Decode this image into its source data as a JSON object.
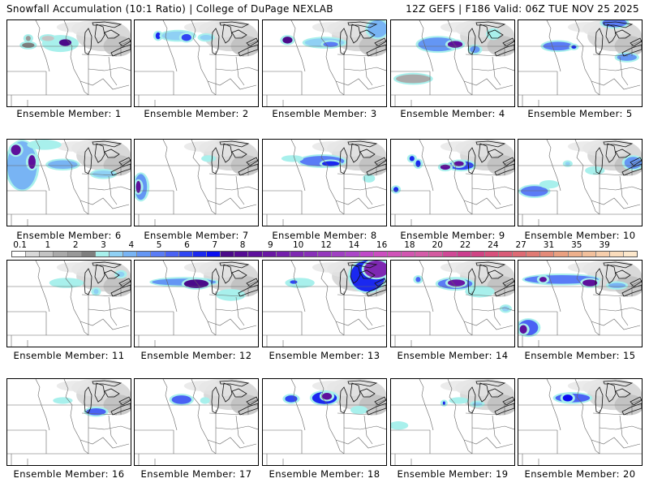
{
  "header": {
    "title_left": "Snowfall Accumulation (10:1 Ratio) | College of DuPage NEXLAB",
    "title_right": "12Z GEFS | F186 Valid: 06Z TUE NOV 25 2025"
  },
  "colorbar": {
    "tick_labels": [
      "0.1",
      "1",
      "2",
      "3",
      "4",
      "5",
      "6",
      "7",
      "8",
      "9",
      "10",
      "12",
      "14",
      "16",
      "18",
      "20",
      "22",
      "24",
      "27",
      "31",
      "35",
      "39"
    ],
    "tick_cell_index": [
      0,
      2,
      4,
      6,
      8,
      10,
      12,
      14,
      16,
      18,
      20,
      22,
      24,
      26,
      28,
      30,
      32,
      34,
      36,
      38,
      40,
      42
    ],
    "colors": [
      "#ffffff",
      "#d9d9d9",
      "#c4c4c4",
      "#aaaaaa",
      "#999999",
      "#7f7f7f",
      "#a8f0ec",
      "#8fd0f4",
      "#78b4f4",
      "#6496f4",
      "#5a7cf6",
      "#4a62f4",
      "#3046f4",
      "#1a28f0",
      "#0a0ef0",
      "#4b0a8a",
      "#560c94",
      "#5e109c",
      "#6a18a4",
      "#7420ac",
      "#7e28b2",
      "#8830b8",
      "#9438bc",
      "#a040c2",
      "#ab46c8",
      "#c048c8",
      "#cc4ec0",
      "#d052b8",
      "#d256b0",
      "#d45ca8",
      "#d45aa0",
      "#d04896",
      "#cc3c8e",
      "#d04484",
      "#d8507c",
      "#da5c78",
      "#de6a74",
      "#e07a74",
      "#e48a78",
      "#eaa080",
      "#eeb08c",
      "#f2c09c",
      "#f6ceac",
      "#fadcbc",
      "#fde8cc"
    ]
  },
  "panels": [
    {
      "label": "Ensemble Member: 1",
      "blobs": [
        [
          0.17,
          0.21,
          0.02,
          0.03,
          4
        ],
        [
          0.17,
          0.29,
          0.05,
          0.03,
          5
        ],
        [
          0.43,
          0.27,
          0.13,
          0.08,
          6
        ],
        [
          0.47,
          0.26,
          0.05,
          0.04,
          15
        ],
        [
          0.33,
          0.21,
          0.05,
          0.03,
          2
        ]
      ]
    },
    {
      "label": "Ensemble Member: 2",
      "blobs": [
        [
          0.19,
          0.18,
          0.02,
          0.04,
          13
        ],
        [
          0.35,
          0.18,
          0.13,
          0.05,
          7
        ],
        [
          0.42,
          0.2,
          0.04,
          0.04,
          12
        ],
        [
          0.58,
          0.2,
          0.05,
          0.03,
          7
        ]
      ]
    },
    {
      "label": "Ensemble Member: 3",
      "blobs": [
        [
          0.2,
          0.23,
          0.04,
          0.04,
          15
        ],
        [
          0.5,
          0.26,
          0.16,
          0.05,
          7
        ],
        [
          0.55,
          0.28,
          0.06,
          0.03,
          10
        ],
        [
          0.93,
          0.1,
          0.08,
          0.1,
          8
        ]
      ]
    },
    {
      "label": "Ensemble Member: 4",
      "blobs": [
        [
          0.38,
          0.28,
          0.16,
          0.08,
          9
        ],
        [
          0.52,
          0.28,
          0.06,
          0.04,
          17
        ],
        [
          0.68,
          0.34,
          0.04,
          0.04,
          9
        ],
        [
          0.83,
          0.16,
          0.04,
          0.05,
          6
        ],
        [
          0.18,
          0.68,
          0.14,
          0.05,
          3
        ]
      ]
    },
    {
      "label": "Ensemble Member: 5",
      "blobs": [
        [
          0.32,
          0.3,
          0.12,
          0.05,
          10
        ],
        [
          0.45,
          0.31,
          0.02,
          0.02,
          13
        ],
        [
          0.78,
          0.03,
          0.1,
          0.05,
          10
        ],
        [
          0.88,
          0.43,
          0.08,
          0.04,
          9
        ]
      ]
    },
    {
      "label": "Ensemble Member: 6",
      "blobs": [
        [
          0.12,
          0.3,
          0.12,
          0.28,
          8
        ],
        [
          0.07,
          0.12,
          0.04,
          0.06,
          17
        ],
        [
          0.2,
          0.26,
          0.03,
          0.08,
          17
        ],
        [
          0.45,
          0.29,
          0.12,
          0.05,
          8
        ],
        [
          0.78,
          0.4,
          0.09,
          0.04,
          7
        ],
        [
          0.3,
          0.06,
          0.12,
          0.04,
          6
        ]
      ]
    },
    {
      "label": "Ensemble Member: 7",
      "blobs": [
        [
          0.05,
          0.55,
          0.05,
          0.15,
          9
        ],
        [
          0.03,
          0.55,
          0.02,
          0.07,
          17
        ],
        [
          0.6,
          0.22,
          0.04,
          0.02,
          6
        ]
      ]
    },
    {
      "label": "Ensemble Member: 8",
      "blobs": [
        [
          0.48,
          0.25,
          0.18,
          0.06,
          10
        ],
        [
          0.55,
          0.28,
          0.07,
          0.03,
          13
        ],
        [
          0.24,
          0.22,
          0.07,
          0.02,
          6
        ],
        [
          0.86,
          0.45,
          0.03,
          0.03,
          6
        ]
      ]
    },
    {
      "label": "Ensemble Member: 9",
      "blobs": [
        [
          0.57,
          0.3,
          0.1,
          0.05,
          12
        ],
        [
          0.44,
          0.32,
          0.04,
          0.03,
          17
        ],
        [
          0.55,
          0.28,
          0.04,
          0.03,
          17
        ],
        [
          0.17,
          0.22,
          0.02,
          0.03,
          13
        ],
        [
          0.22,
          0.28,
          0.02,
          0.04,
          13
        ],
        [
          0.04,
          0.58,
          0.02,
          0.03,
          13
        ]
      ]
    },
    {
      "label": "Ensemble Member: 10",
      "blobs": [
        [
          0.13,
          0.6,
          0.11,
          0.06,
          10
        ],
        [
          0.25,
          0.52,
          0.06,
          0.03,
          6
        ],
        [
          0.62,
          0.36,
          0.06,
          0.03,
          6
        ],
        [
          0.93,
          0.27,
          0.07,
          0.07,
          9
        ],
        [
          0.4,
          0.28,
          0.02,
          0.02,
          7
        ]
      ]
    },
    {
      "label": "Ensemble Member: 11",
      "blobs": [
        [
          0.48,
          0.26,
          0.12,
          0.04,
          6
        ],
        [
          0.72,
          0.36,
          0.02,
          0.03,
          7
        ],
        [
          0.92,
          0.16,
          0.03,
          0.03,
          7
        ]
      ]
    },
    {
      "label": "Ensemble Member: 12",
      "blobs": [
        [
          0.4,
          0.25,
          0.26,
          0.04,
          9
        ],
        [
          0.5,
          0.27,
          0.1,
          0.05,
          15
        ],
        [
          0.78,
          0.4,
          0.1,
          0.05,
          6
        ]
      ]
    },
    {
      "label": "Ensemble Member: 13",
      "blobs": [
        [
          0.3,
          0.26,
          0.1,
          0.04,
          6
        ],
        [
          0.25,
          0.25,
          0.03,
          0.02,
          12
        ],
        [
          0.85,
          0.18,
          0.14,
          0.18,
          13
        ],
        [
          0.92,
          0.1,
          0.1,
          0.1,
          20
        ]
      ]
    },
    {
      "label": "Ensemble Member: 14",
      "blobs": [
        [
          0.52,
          0.27,
          0.14,
          0.06,
          10
        ],
        [
          0.53,
          0.26,
          0.07,
          0.04,
          18
        ],
        [
          0.72,
          0.36,
          0.1,
          0.05,
          6
        ],
        [
          0.22,
          0.22,
          0.02,
          0.03,
          11
        ],
        [
          0.93,
          0.56,
          0.03,
          0.03,
          7
        ]
      ]
    },
    {
      "label": "Ensemble Member: 15",
      "blobs": [
        [
          0.35,
          0.22,
          0.3,
          0.05,
          10
        ],
        [
          0.2,
          0.22,
          0.03,
          0.03,
          17
        ],
        [
          0.58,
          0.26,
          0.06,
          0.04,
          17
        ],
        [
          0.8,
          0.29,
          0.07,
          0.03,
          8
        ],
        [
          0.08,
          0.78,
          0.08,
          0.09,
          11
        ],
        [
          0.04,
          0.8,
          0.03,
          0.05,
          17
        ]
      ]
    },
    {
      "label": "Ensemble Member: 16",
      "blobs": [
        [
          0.45,
          0.25,
          0.06,
          0.02,
          6
        ],
        [
          0.72,
          0.38,
          0.08,
          0.04,
          11
        ]
      ]
    },
    {
      "label": "Ensemble Member: 17",
      "blobs": [
        [
          0.38,
          0.24,
          0.08,
          0.05,
          11
        ],
        [
          0.57,
          0.25,
          0.02,
          0.02,
          6
        ]
      ]
    },
    {
      "label": "Ensemble Member: 18",
      "blobs": [
        [
          0.23,
          0.23,
          0.05,
          0.04,
          12
        ],
        [
          0.5,
          0.22,
          0.1,
          0.07,
          13
        ],
        [
          0.52,
          0.2,
          0.04,
          0.04,
          17
        ],
        [
          0.78,
          0.36,
          0.05,
          0.03,
          6
        ]
      ]
    },
    {
      "label": "Ensemble Member: 19",
      "blobs": [
        [
          0.55,
          0.25,
          0.06,
          0.02,
          6
        ],
        [
          0.7,
          0.29,
          0.04,
          0.02,
          7
        ],
        [
          0.43,
          0.28,
          0.01,
          0.02,
          13
        ],
        [
          0.06,
          0.54,
          0.06,
          0.03,
          6
        ]
      ]
    },
    {
      "label": "Ensemble Member: 20",
      "blobs": [
        [
          0.44,
          0.22,
          0.14,
          0.05,
          11
        ],
        [
          0.4,
          0.22,
          0.04,
          0.04,
          14
        ]
      ]
    }
  ]
}
